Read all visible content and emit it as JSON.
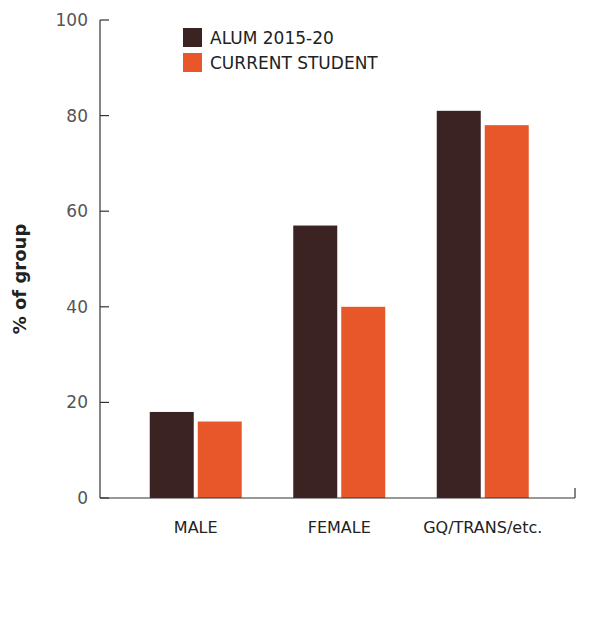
{
  "chart_data": {
    "type": "bar",
    "y_label": "% of group",
    "categories": [
      "MALE",
      "FEMALE",
      "GQ/TRANS/etc."
    ],
    "series": [
      {
        "name": "ALUM 2015-20",
        "color": "#3b2323",
        "values": [
          18,
          57,
          81
        ]
      },
      {
        "name": "CURRENT STUDENT",
        "color": "#e8572a",
        "values": [
          16,
          40,
          78
        ]
      }
    ],
    "ylim": [
      0,
      100
    ],
    "yticks": [
      0,
      20,
      40,
      60,
      80,
      100
    ],
    "legend": "top",
    "grid": false
  }
}
